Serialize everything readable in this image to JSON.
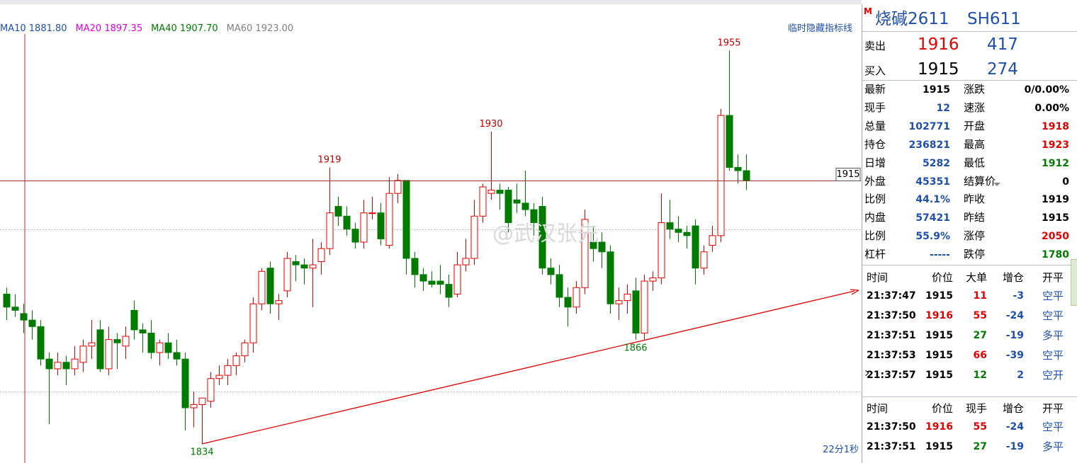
{
  "chart_data": {
    "type": "candlestick",
    "open": [
      1880,
      1876,
      1874,
      1872,
      1870,
      1860,
      1857,
      1859,
      1857,
      1859,
      1864,
      1869,
      1857,
      1866,
      1864,
      1875,
      1869,
      1868,
      1862,
      1865,
      1862,
      1860,
      1845,
      1846,
      1847,
      1854,
      1855,
      1858,
      1861,
      1865,
      1877,
      1888,
      1877,
      1881,
      1890,
      1889,
      1888,
      1890,
      1894,
      1907,
      1904,
      1900,
      1896,
      1905,
      1905,
      1895,
      1911,
      1915,
      1891,
      1886,
      1884,
      1884,
      1883,
      1880,
      1889,
      1891,
      1904,
      1911,
      1912,
      1912,
      1909,
      1908,
      1906,
      1907,
      1888,
      1886,
      1879,
      1876,
      1882,
      1896,
      1896,
      1893,
      1877,
      1878,
      1881,
      1868,
      1884,
      1885,
      1902,
      1900,
      1899,
      1901,
      1888,
      1895,
      1898,
      1935,
      1919,
      1918
    ],
    "high": [
      1882,
      1880,
      1877,
      1875,
      1872,
      1862,
      1862,
      1861,
      1864,
      1866,
      1872,
      1872,
      1870,
      1868,
      1870,
      1878,
      1871,
      1872,
      1866,
      1868,
      1866,
      1862,
      1850,
      1848,
      1856,
      1858,
      1860,
      1862,
      1866,
      1879,
      1888,
      1890,
      1880,
      1893,
      1892,
      1891,
      1897,
      1896,
      1919,
      1910,
      1907,
      1902,
      1909,
      1910,
      1908,
      1916,
      1917,
      1915,
      1893,
      1888,
      1887,
      1889,
      1886,
      1893,
      1897,
      1909,
      1914,
      1930,
      1914,
      1913,
      1914,
      1918,
      1908,
      1910,
      1891,
      1889,
      1882,
      1884,
      1906,
      1901,
      1899,
      1895,
      1882,
      1883,
      1885,
      1886,
      1887,
      1911,
      1909,
      1904,
      1901,
      1903,
      1895,
      1901,
      1937,
      1955,
      1923,
      1923
    ],
    "low": [
      1872,
      1873,
      1868,
      1866,
      1858,
      1840,
      1855,
      1852,
      1855,
      1856,
      1860,
      1856,
      1855,
      1857,
      1860,
      1866,
      1862,
      1860,
      1858,
      1860,
      1858,
      1838,
      1839,
      1834,
      1845,
      1852,
      1852,
      1855,
      1859,
      1862,
      1875,
      1874,
      1872,
      1879,
      1884,
      1883,
      1876,
      1886,
      1892,
      1901,
      1898,
      1894,
      1894,
      1903,
      1895,
      1894,
      1908,
      1886,
      1882,
      1881,
      1882,
      1880,
      1876,
      1879,
      1887,
      1889,
      1902,
      1909,
      1906,
      1899,
      1905,
      1904,
      1898,
      1886,
      1883,
      1876,
      1870,
      1874,
      1880,
      1890,
      1888,
      1874,
      1872,
      1874,
      1866,
      1866,
      1881,
      1883,
      1897,
      1896,
      1894,
      1883,
      1886,
      1893,
      1896,
      1918,
      1914,
      1912
    ],
    "close": [
      1876,
      1875,
      1872,
      1870,
      1860,
      1857,
      1859,
      1857,
      1860,
      1864,
      1865,
      1857,
      1866,
      1865,
      1867,
      1869,
      1868,
      1862,
      1865,
      1862,
      1860,
      1845,
      1846,
      1848,
      1854,
      1855,
      1858,
      1861,
      1865,
      1877,
      1887,
      1877,
      1878,
      1891,
      1889,
      1888,
      1889,
      1894,
      1905,
      1904,
      1900,
      1896,
      1905,
      1905,
      1897,
      1911,
      1915,
      1891,
      1886,
      1884,
      1883,
      1883,
      1879,
      1889,
      1891,
      1904,
      1913,
      1912,
      1911,
      1902,
      1908,
      1906,
      1902,
      1888,
      1886,
      1879,
      1876,
      1882,
      1903,
      1894,
      1893,
      1877,
      1878,
      1880,
      1868,
      1884,
      1885,
      1902,
      1900,
      1899,
      1898,
      1888,
      1893,
      1898,
      1935,
      1919,
      1918,
      1915
    ],
    "ylim": [
      1828,
      1964
    ],
    "grid_levels": [
      1850,
      1900
    ],
    "up_color": "#e00000",
    "down_color": "#007a00",
    "indicators": [
      {
        "name": "MA10 1881.80",
        "color": "#1f4fa8"
      },
      {
        "name": "MA20 1897.35",
        "color": "#e000e0"
      },
      {
        "name": "MA40 1907.70",
        "color": "#007a00"
      },
      {
        "name": "MA60 1923.00",
        "color": "#808080"
      }
    ],
    "hide_button": "临时隐藏指标线",
    "timer": "22分1秒",
    "watermark": "@武汉张先"
  },
  "quote_panel": {
    "flag": "M",
    "title": "烧碱2611",
    "code": "SH611",
    "ask": {
      "label": "卖出",
      "price": "1916",
      "volume": "417"
    },
    "bid": {
      "label": "买入",
      "price": "1915",
      "volume": "274"
    },
    "stats": [
      [
        "最新",
        "1915",
        "涨跌",
        "0/0.00%"
      ],
      [
        "现手",
        "12",
        "速涨",
        "0.00%"
      ],
      [
        "总量",
        "102771",
        "开盘",
        "1918"
      ],
      [
        "持仓",
        "236821",
        "最高",
        "1923"
      ],
      [
        "日增",
        "5282",
        "最低",
        "1912"
      ],
      [
        "外盘",
        "45351",
        "结算价",
        "0"
      ],
      [
        "比例",
        "44.1%",
        "昨收",
        "1919"
      ],
      [
        "内盘",
        "57421",
        "昨结",
        "1915"
      ],
      [
        "比例",
        "55.9%",
        "涨停",
        "2050"
      ],
      [
        "杠杆",
        "-----",
        "跌停",
        "1780"
      ]
    ],
    "trades_1": {
      "header": [
        "时间",
        "价位",
        "大单",
        "增仓",
        "开平"
      ],
      "rows": [
        [
          "21:37:47",
          "1915",
          "11",
          "-3",
          "空平"
        ],
        [
          "21:37:50",
          "1916",
          "55",
          "-24",
          "空平"
        ],
        [
          "21:37:51",
          "1915",
          "27",
          "-19",
          "多平"
        ],
        [
          "21:37:53",
          "1915",
          "66",
          "-39",
          "空平"
        ],
        [
          "21:37:57",
          "1915",
          "12",
          "2",
          "空开"
        ]
      ]
    },
    "trades_2": {
      "header": [
        "时间",
        "价位",
        "现手",
        "增仓",
        "开平"
      ],
      "rows": [
        [
          "21:37:50",
          "1916",
          "55",
          "-24",
          "空平"
        ],
        [
          "21:37:51",
          "1915",
          "27",
          "-19",
          "多平"
        ]
      ]
    }
  }
}
